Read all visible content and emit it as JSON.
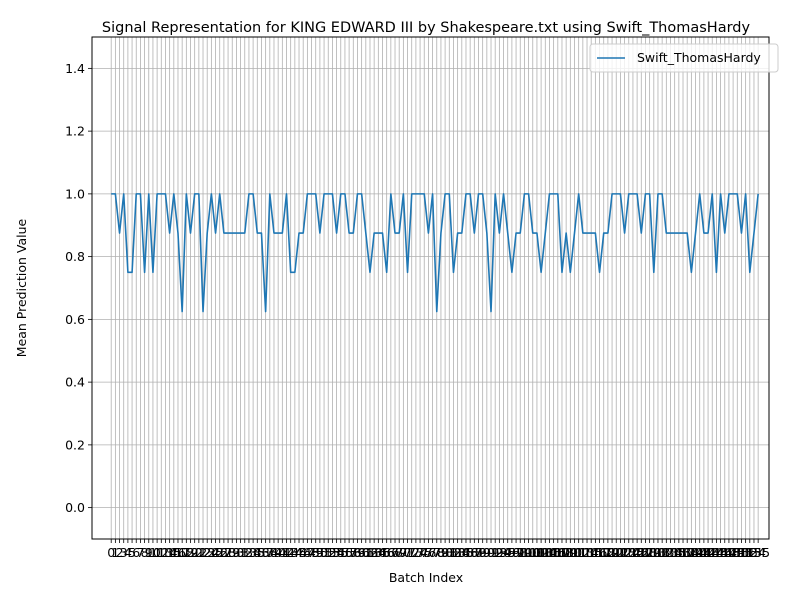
{
  "chart_data": {
    "type": "line",
    "title": "Signal Representation for KING EDWARD III by Shakespeare.txt using Swift_ThomasHardy",
    "xlabel": "Batch Index",
    "ylabel": "Mean Prediction Value",
    "ylim": [
      -0.1,
      1.5
    ],
    "xlim": [
      -4.6,
      157.6
    ],
    "grid": true,
    "legend_position": "top-right",
    "y_ticks": [
      0.0,
      0.2,
      0.4,
      0.6,
      0.8,
      1.0,
      1.2,
      1.4
    ],
    "y_tick_labels": [
      "0.0",
      "0.2",
      "0.4",
      "0.6",
      "0.8",
      "1.0",
      "1.2",
      "1.4"
    ],
    "series": [
      {
        "name": "Swift_ThomasHardy",
        "color": "#1f77b4",
        "values": [
          1.0,
          1.0,
          0.875,
          1.0,
          0.75,
          0.75,
          1.0,
          1.0,
          0.75,
          1.0,
          0.75,
          1.0,
          1.0,
          1.0,
          0.875,
          1.0,
          0.875,
          0.625,
          1.0,
          0.875,
          1.0,
          1.0,
          0.625,
          0.875,
          1.0,
          0.875,
          1.0,
          0.875,
          0.875,
          0.875,
          0.875,
          0.875,
          0.875,
          1.0,
          1.0,
          0.875,
          0.875,
          0.625,
          1.0,
          0.875,
          0.875,
          0.875,
          1.0,
          0.75,
          0.75,
          0.875,
          0.875,
          1.0,
          1.0,
          1.0,
          0.875,
          1.0,
          1.0,
          1.0,
          0.875,
          1.0,
          1.0,
          0.875,
          0.875,
          1.0,
          1.0,
          0.875,
          0.75,
          0.875,
          0.875,
          0.875,
          0.75,
          1.0,
          0.875,
          0.875,
          1.0,
          0.75,
          1.0,
          1.0,
          1.0,
          1.0,
          0.875,
          1.0,
          0.625,
          0.875,
          1.0,
          1.0,
          0.75,
          0.875,
          0.875,
          1.0,
          1.0,
          0.875,
          1.0,
          1.0,
          0.875,
          0.625,
          1.0,
          0.875,
          1.0,
          0.875,
          0.75,
          0.875,
          0.875,
          1.0,
          1.0,
          0.875,
          0.875,
          0.75,
          0.875,
          1.0,
          1.0,
          1.0,
          0.75,
          0.875,
          0.75,
          0.875,
          1.0,
          0.875,
          0.875,
          0.875,
          0.875,
          0.75,
          0.875,
          0.875,
          1.0,
          1.0,
          1.0,
          0.875,
          1.0,
          1.0,
          1.0,
          0.875,
          1.0,
          1.0,
          0.75,
          1.0,
          1.0,
          0.875,
          0.875,
          0.875,
          0.875,
          0.875,
          0.875,
          0.75,
          0.875,
          1.0,
          0.875,
          0.875,
          1.0,
          0.75,
          1.0,
          0.875,
          1.0,
          1.0,
          1.0,
          0.875,
          1.0,
          0.75,
          0.875,
          1.0
        ]
      }
    ]
  }
}
